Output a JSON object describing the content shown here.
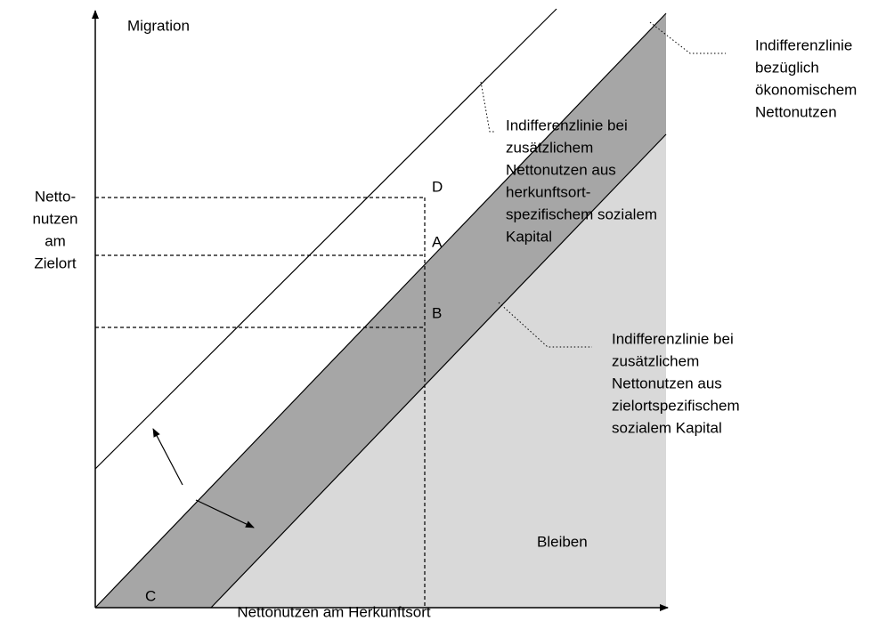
{
  "y_axis_label": "Migration",
  "y_side_label": [
    "Netto-",
    "nutzen",
    "am",
    "Zielort"
  ],
  "x_axis_label": "Nettonutzen am Herkunftsort",
  "points": {
    "D": "D",
    "A": "A",
    "B": "B",
    "C": "C"
  },
  "region_label": "Bleiben",
  "annotations": [
    {
      "lines": [
        "Indifferenzlinie",
        "bezüglich",
        "ökonomischem",
        "Nettonutzen"
      ]
    },
    {
      "lines": [
        "Indifferenzlinie bei",
        "zusätzlichem",
        "Nettonutzen aus",
        "herkunftsort-",
        "spezifischem sozialem",
        "Kapital"
      ]
    },
    {
      "lines": [
        "Indifferenzlinie bei",
        "zusätzlichem",
        "Nettonutzen aus",
        "zielortspezifischem",
        "sozialem Kapital"
      ]
    }
  ]
}
